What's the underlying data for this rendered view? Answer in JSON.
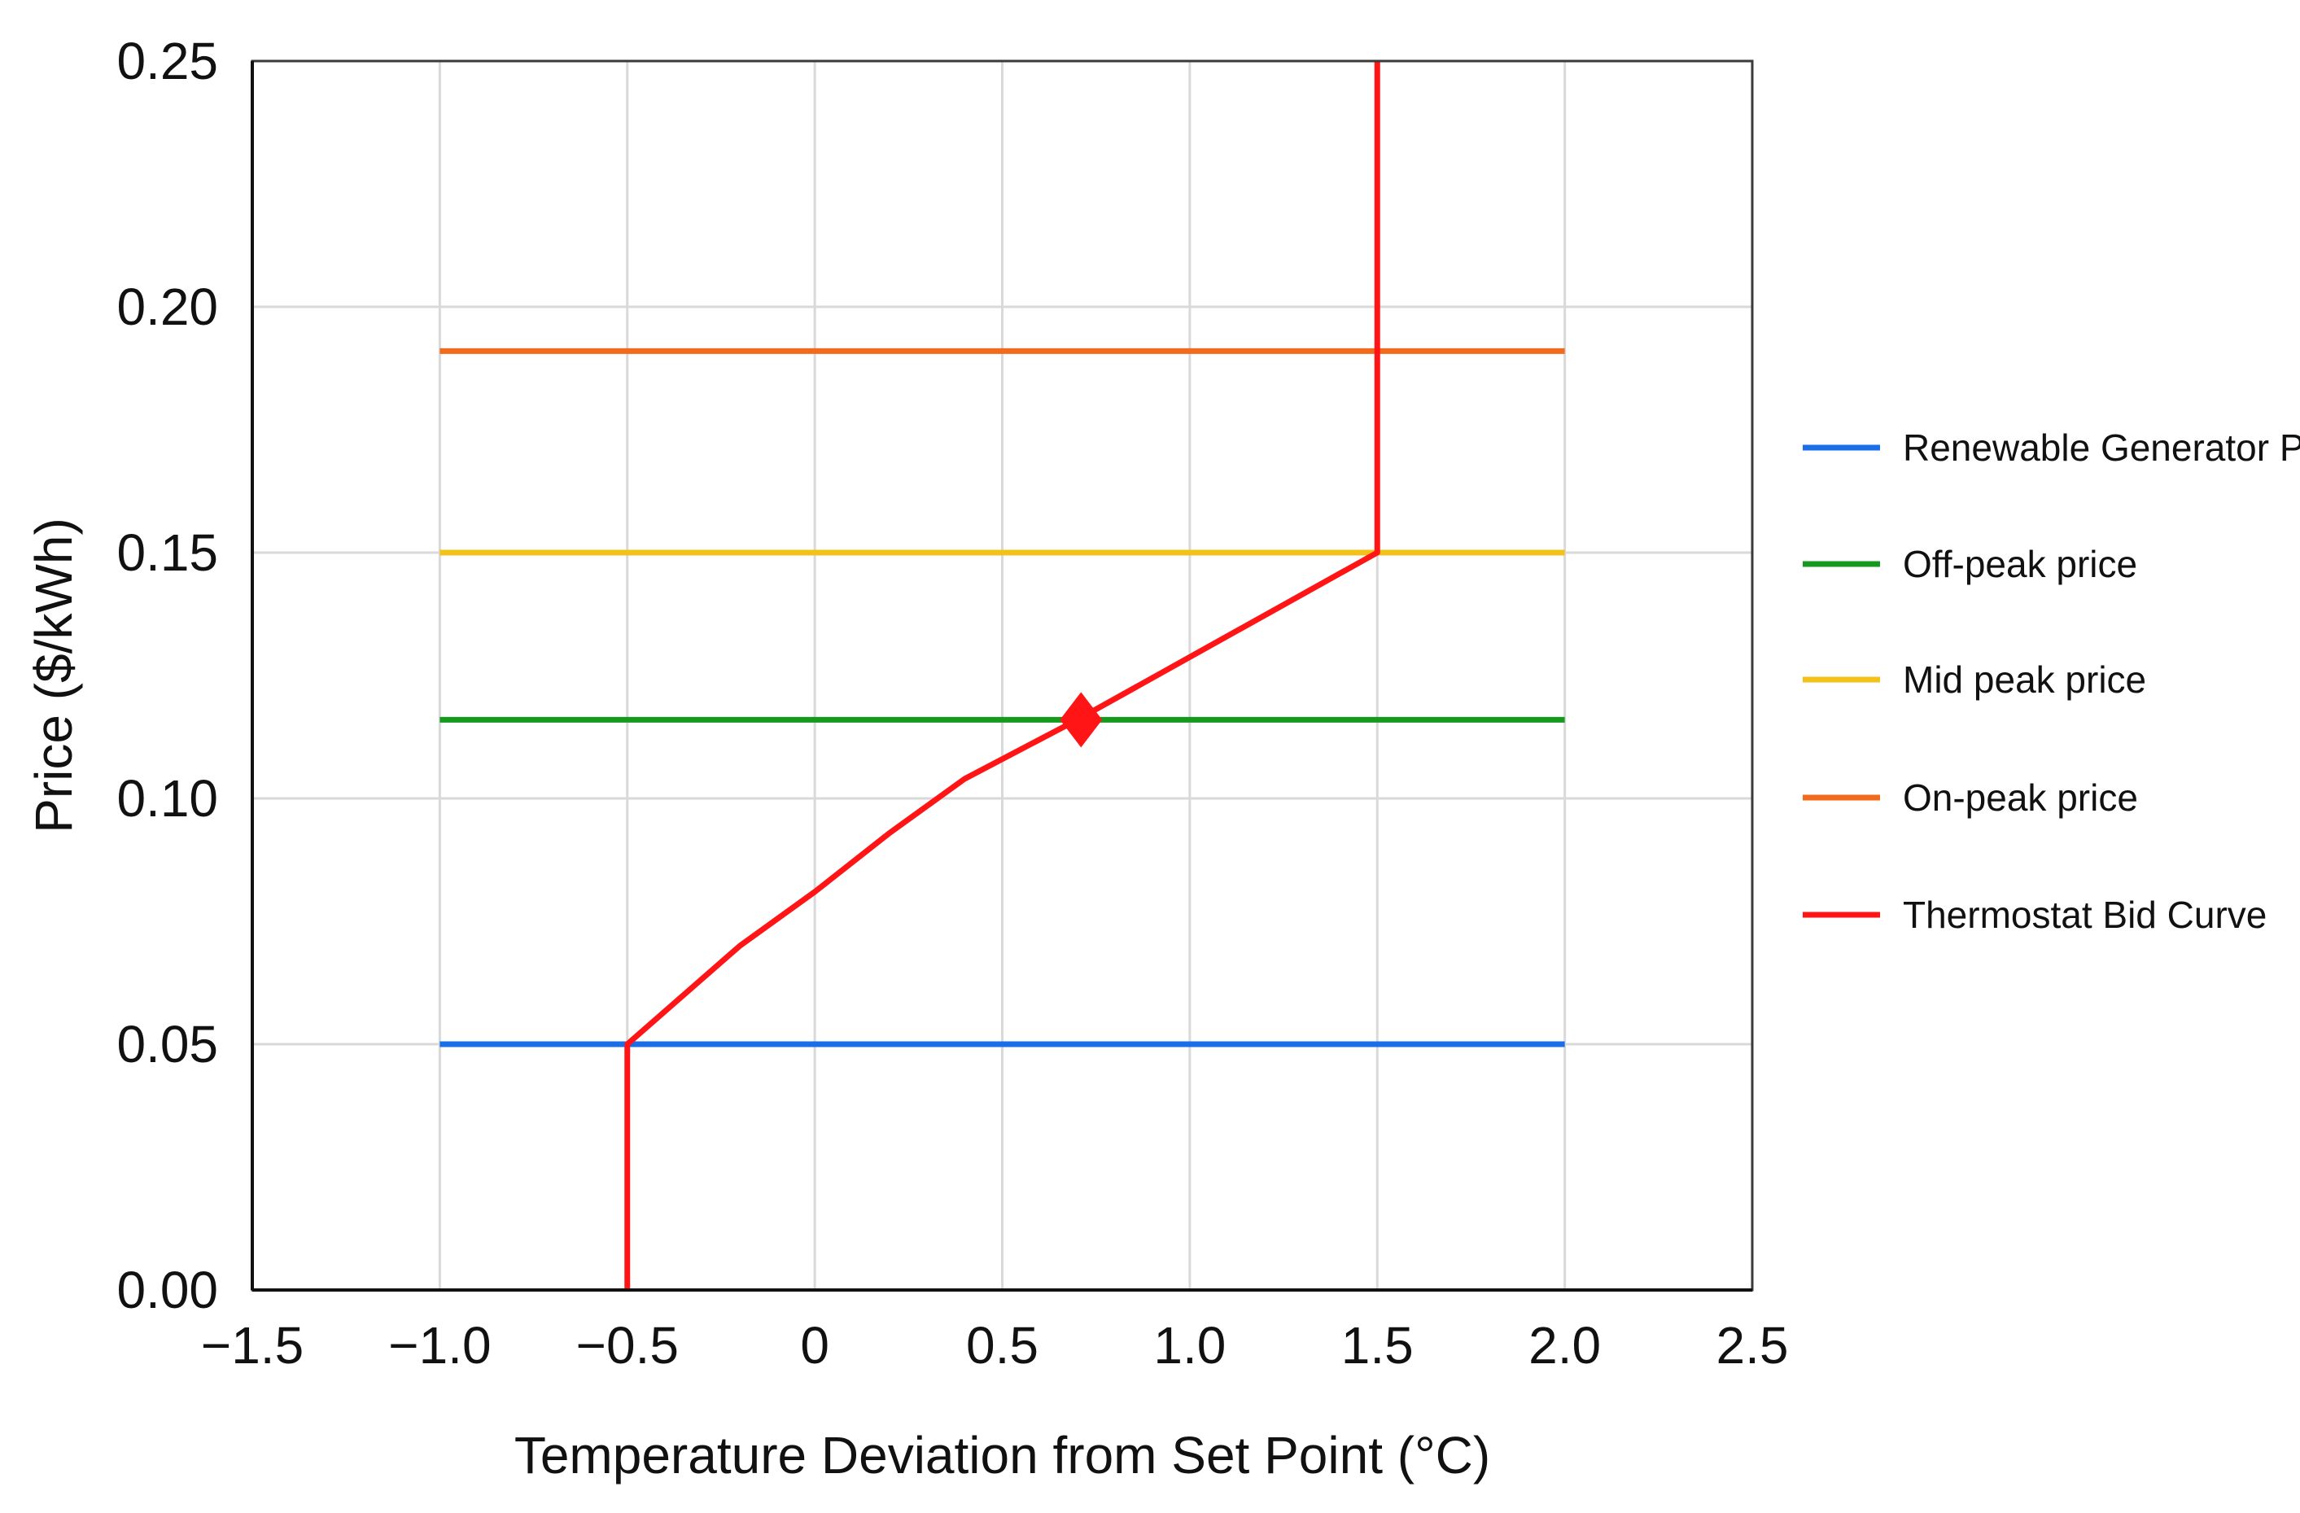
{
  "chart_data": {
    "type": "line",
    "title": "",
    "xlabel": "Temperature Deviation from Set Point (°C)",
    "ylabel": "Price ($/kWh)",
    "xlim": [
      -1.5,
      2.5
    ],
    "ylim": [
      0,
      0.25
    ],
    "x_ticks": [
      -1.5,
      -1.0,
      -0.5,
      0,
      0.5,
      1.0,
      1.5,
      2.0,
      2.5
    ],
    "x_tick_labels": [
      "−1.5",
      "−1.0",
      "−0.5",
      "0",
      "0.5",
      "1.0",
      "1.5",
      "2.0",
      "2.5"
    ],
    "y_ticks": [
      0,
      0.05,
      0.1,
      0.15,
      0.2,
      0.25
    ],
    "y_tick_labels": [
      "0.00",
      "0.05",
      "0.10",
      "0.15",
      "0.20",
      "0.25"
    ],
    "grid": true,
    "legend_position": "right",
    "series": [
      {
        "name": "Renewable Generator Price",
        "color": "#1a6ee8",
        "x": [
          -1.0,
          2.0
        ],
        "y": [
          0.05,
          0.05
        ]
      },
      {
        "name": "Off-peak price",
        "color": "#159a1e",
        "x": [
          -1.0,
          2.0
        ],
        "y": [
          0.116,
          0.116
        ]
      },
      {
        "name": "Mid peak price",
        "color": "#f2c21b",
        "x": [
          -1.0,
          2.0
        ],
        "y": [
          0.15,
          0.15
        ]
      },
      {
        "name": "On-peak price",
        "color": "#f26a1b",
        "x": [
          -1.0,
          2.0
        ],
        "y": [
          0.191,
          0.191
        ]
      },
      {
        "name": "Thermostat Bid Curve",
        "color": "#ff1515",
        "x": [
          -0.5,
          -0.5,
          -0.2,
          0.0,
          0.2,
          0.4,
          0.7,
          1.5,
          1.5
        ],
        "y": [
          0.0,
          0.05,
          0.07,
          0.081,
          0.093,
          0.104,
          0.116,
          0.15,
          0.25
        ]
      }
    ],
    "marker": {
      "x": 0.71,
      "y": 0.116,
      "shape": "diamond",
      "color": "#ff1515"
    }
  }
}
